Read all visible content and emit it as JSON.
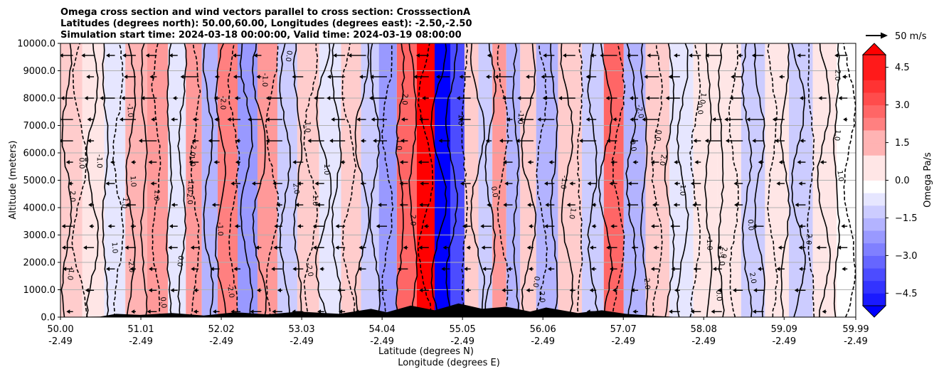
{
  "chart_data": {
    "type": "heatmap",
    "title_lines": [
      "Omega cross section and wind vectors parallel to cross section: CrosssectionA",
      "Latitudes (degrees north): 50.00,60.00, Longitudes (degrees east): -2.50,-2.50",
      "Simulation start time: 2024-03-18 00:00:00, Valid time: 2024-03-19 08:00:00"
    ],
    "ylabel": "Altitude (meters)",
    "xlabel_lat": "Latitude (degrees N)",
    "xlabel_lon": "Longitude (degrees E)",
    "ylim": [
      0,
      10000
    ],
    "xlim": [
      50.0,
      59.99
    ],
    "y_ticks": [
      {
        "value": 0,
        "label": "0.0"
      },
      {
        "value": 1000,
        "label": "1000.0"
      },
      {
        "value": 2000,
        "label": "2000.0"
      },
      {
        "value": 3000,
        "label": "3000.0"
      },
      {
        "value": 4000,
        "label": "4000.0"
      },
      {
        "value": 5000,
        "label": "5000.0"
      },
      {
        "value": 6000,
        "label": "6000.0"
      },
      {
        "value": 7000,
        "label": "7000.0"
      },
      {
        "value": 8000,
        "label": "8000.0"
      },
      {
        "value": 9000,
        "label": "9000.0"
      },
      {
        "value": 10000,
        "label": "10000.0"
      }
    ],
    "x_ticks": [
      {
        "value": 50.0,
        "lat": "50.00",
        "lon": "-2.49"
      },
      {
        "value": 51.01,
        "lat": "51.01",
        "lon": "-2.49"
      },
      {
        "value": 52.02,
        "lat": "52.02",
        "lon": "-2.49"
      },
      {
        "value": 53.03,
        "lat": "53.03",
        "lon": "-2.49"
      },
      {
        "value": 54.04,
        "lat": "54.04",
        "lon": "-2.49"
      },
      {
        "value": 55.05,
        "lat": "55.05",
        "lon": "-2.49"
      },
      {
        "value": 56.06,
        "lat": "56.06",
        "lon": "-2.49"
      },
      {
        "value": 57.07,
        "lat": "57.07",
        "lon": "-2.49"
      },
      {
        "value": 58.08,
        "lat": "58.08",
        "lon": "-2.49"
      },
      {
        "value": 59.09,
        "lat": "59.09",
        "lon": "-2.49"
      },
      {
        "value": 59.99,
        "lat": "59.99",
        "lon": "-2.49"
      }
    ],
    "colorbar": {
      "label": "Omega Pa/s",
      "range": [
        -5.0,
        5.0
      ],
      "ticks": [
        {
          "value": 4.5,
          "label": "4.5"
        },
        {
          "value": 3.0,
          "label": "3.0"
        },
        {
          "value": 1.5,
          "label": "1.5"
        },
        {
          "value": 0.0,
          "label": "0.0"
        },
        {
          "value": -1.5,
          "label": "−1.5"
        },
        {
          "value": -3.0,
          "label": "−3.0"
        },
        {
          "value": -4.5,
          "label": "−4.5"
        }
      ],
      "colors": {
        "max": "#ff0000",
        "mid": "#ffffff",
        "min": "#0000ff"
      }
    },
    "vector_key": {
      "label": "50 m/s",
      "speed": 50
    },
    "omega_bands": [
      {
        "lat": 50.15,
        "value": 1.0
      },
      {
        "lat": 50.4,
        "value": 0.4
      },
      {
        "lat": 50.7,
        "value": -0.5
      },
      {
        "lat": 50.93,
        "value": 1.4
      },
      {
        "lat": 51.25,
        "value": 2.0
      },
      {
        "lat": 51.45,
        "value": -0.6
      },
      {
        "lat": 51.7,
        "value": 2.2
      },
      {
        "lat": 51.85,
        "value": -1.6
      },
      {
        "lat": 52.1,
        "value": 2.5
      },
      {
        "lat": 52.35,
        "value": -2.2
      },
      {
        "lat": 52.6,
        "value": 2.0
      },
      {
        "lat": 52.85,
        "value": -1.0
      },
      {
        "lat": 53.1,
        "value": 1.2
      },
      {
        "lat": 53.4,
        "value": -0.6
      },
      {
        "lat": 53.65,
        "value": 1.0
      },
      {
        "lat": 53.9,
        "value": -1.2
      },
      {
        "lat": 54.1,
        "value": -1.8
      },
      {
        "lat": 54.35,
        "value": 2.8
      },
      {
        "lat": 54.6,
        "value": 5.0
      },
      {
        "lat": 54.8,
        "value": -5.0
      },
      {
        "lat": 55.0,
        "value": -3.5
      },
      {
        "lat": 55.15,
        "value": 1.2
      },
      {
        "lat": 55.35,
        "value": -1.0
      },
      {
        "lat": 55.5,
        "value": 2.2
      },
      {
        "lat": 55.7,
        "value": -1.5
      },
      {
        "lat": 55.85,
        "value": 1.0
      },
      {
        "lat": 56.1,
        "value": -1.3
      },
      {
        "lat": 56.4,
        "value": 1.0
      },
      {
        "lat": 56.7,
        "value": -1.0
      },
      {
        "lat": 56.95,
        "value": 2.8
      },
      {
        "lat": 57.2,
        "value": -1.5
      },
      {
        "lat": 57.5,
        "value": 1.0
      },
      {
        "lat": 57.8,
        "value": -0.4
      },
      {
        "lat": 58.1,
        "value": 0.6
      },
      {
        "lat": 58.4,
        "value": 0.3
      },
      {
        "lat": 58.7,
        "value": -1.0
      },
      {
        "lat": 59.0,
        "value": 0.5
      },
      {
        "lat": 59.3,
        "value": -1.0
      },
      {
        "lat": 59.6,
        "value": 0.6
      },
      {
        "lat": 59.9,
        "value": 0.2
      }
    ],
    "terrain": [
      {
        "lat": 50.0,
        "alt": 0
      },
      {
        "lat": 50.5,
        "alt": 20
      },
      {
        "lat": 50.7,
        "alt": 120
      },
      {
        "lat": 51.0,
        "alt": 80
      },
      {
        "lat": 51.4,
        "alt": 150
      },
      {
        "lat": 51.8,
        "alt": 60
      },
      {
        "lat": 52.2,
        "alt": 180
      },
      {
        "lat": 52.6,
        "alt": 100
      },
      {
        "lat": 53.0,
        "alt": 200
      },
      {
        "lat": 53.5,
        "alt": 120
      },
      {
        "lat": 53.9,
        "alt": 300
      },
      {
        "lat": 54.1,
        "alt": 180
      },
      {
        "lat": 54.4,
        "alt": 420
      },
      {
        "lat": 54.7,
        "alt": 250
      },
      {
        "lat": 55.0,
        "alt": 500
      },
      {
        "lat": 55.3,
        "alt": 300
      },
      {
        "lat": 55.6,
        "alt": 380
      },
      {
        "lat": 55.9,
        "alt": 200
      },
      {
        "lat": 56.1,
        "alt": 350
      },
      {
        "lat": 56.5,
        "alt": 150
      },
      {
        "lat": 56.8,
        "alt": 250
      },
      {
        "lat": 57.1,
        "alt": 120
      },
      {
        "lat": 57.5,
        "alt": 40
      },
      {
        "lat": 57.8,
        "alt": 0
      },
      {
        "lat": 59.99,
        "alt": 0
      }
    ],
    "contour_labels": [
      "0.0",
      "1.0",
      "-1.0",
      "2.0",
      "-2.0"
    ]
  }
}
